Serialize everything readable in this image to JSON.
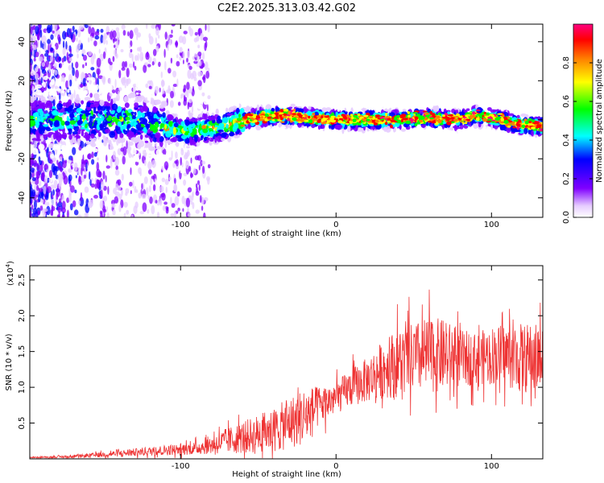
{
  "title": "C2E2.2025.313.03.42.G02",
  "chart_data": [
    {
      "type": "heatmap",
      "xlabel": "Height of straight line (km)",
      "ylabel": "Frequency (Hz)",
      "xlim": [
        -197,
        133
      ],
      "ylim": [
        -50,
        49
      ],
      "xticks": [
        -100,
        0,
        100
      ],
      "xtick_labels": [
        "-100",
        "0",
        "100"
      ],
      "yticks": [
        -40,
        -20,
        0,
        20,
        40
      ],
      "ytick_labels": [
        "-40",
        "-20",
        "0",
        "20",
        "40"
      ],
      "ridge": {
        "description_points_x": [
          -197,
          -160,
          -130,
          -105,
          -95,
          -80,
          -70,
          -60,
          -50,
          -40,
          -30,
          -20,
          0,
          20,
          40,
          60,
          80,
          90,
          100,
          110,
          120,
          133
        ],
        "description_points_y": [
          0,
          0,
          0,
          -5,
          -6,
          -4,
          -3,
          0,
          1,
          2,
          2,
          1,
          0,
          0,
          0,
          1,
          0,
          2,
          1,
          -1,
          -3,
          -3
        ]
      },
      "colorbar": {
        "label": "Normalized spectral amplitude",
        "range": [
          0,
          1
        ],
        "ticks": [
          0.0,
          0.2,
          0.4,
          0.6,
          0.8
        ],
        "tick_labels": [
          "0.0",
          "0.2",
          "0.4",
          "0.6",
          "0.8"
        ],
        "colors": [
          "#ffffff",
          "#e6ccff",
          "#8000ff",
          "#0000ff",
          "#00ffff",
          "#00ff00",
          "#ffff00",
          "#ff8000",
          "#ff0000",
          "#ff0080"
        ]
      }
    },
    {
      "type": "line",
      "xlabel": "Height of straight line (km)",
      "ylabel": "SNR (10 * v/v)",
      "multiplier_label": "(x10",
      "multiplier_exp": "4",
      "multiplier_close": ")",
      "xlim": [
        -197,
        133
      ],
      "ylim": [
        0,
        2.7
      ],
      "xticks": [
        -100,
        0,
        100
      ],
      "xtick_labels": [
        "-100",
        "0",
        "100"
      ],
      "yticks": [
        0.5,
        1.0,
        1.5,
        2.0,
        2.5
      ],
      "ytick_labels": [
        "0.5",
        "1.0",
        "1.5",
        "2.0",
        "2.5"
      ],
      "color": "#ee3333",
      "trend_x": [
        -197,
        -170,
        -150,
        -130,
        -110,
        -90,
        -80,
        -70,
        -60,
        -50,
        -40,
        -30,
        -20,
        -10,
        0,
        10,
        20,
        30,
        40,
        50,
        60,
        70,
        80,
        90,
        100,
        110,
        120,
        133
      ],
      "trend_y": [
        0.02,
        0.03,
        0.06,
        0.09,
        0.12,
        0.15,
        0.2,
        0.25,
        0.3,
        0.35,
        0.4,
        0.5,
        0.6,
        0.75,
        0.85,
        1.0,
        1.1,
        1.25,
        1.35,
        1.4,
        1.45,
        1.45,
        1.4,
        1.4,
        1.45,
        1.45,
        1.4,
        1.4
      ],
      "spread_y": [
        0.01,
        0.02,
        0.04,
        0.06,
        0.08,
        0.1,
        0.15,
        0.2,
        0.25,
        0.3,
        0.35,
        0.4,
        0.45,
        0.3,
        0.25,
        0.3,
        0.35,
        0.45,
        0.55,
        0.55,
        0.6,
        0.55,
        0.45,
        0.4,
        0.45,
        0.5,
        0.55,
        0.55
      ]
    }
  ]
}
